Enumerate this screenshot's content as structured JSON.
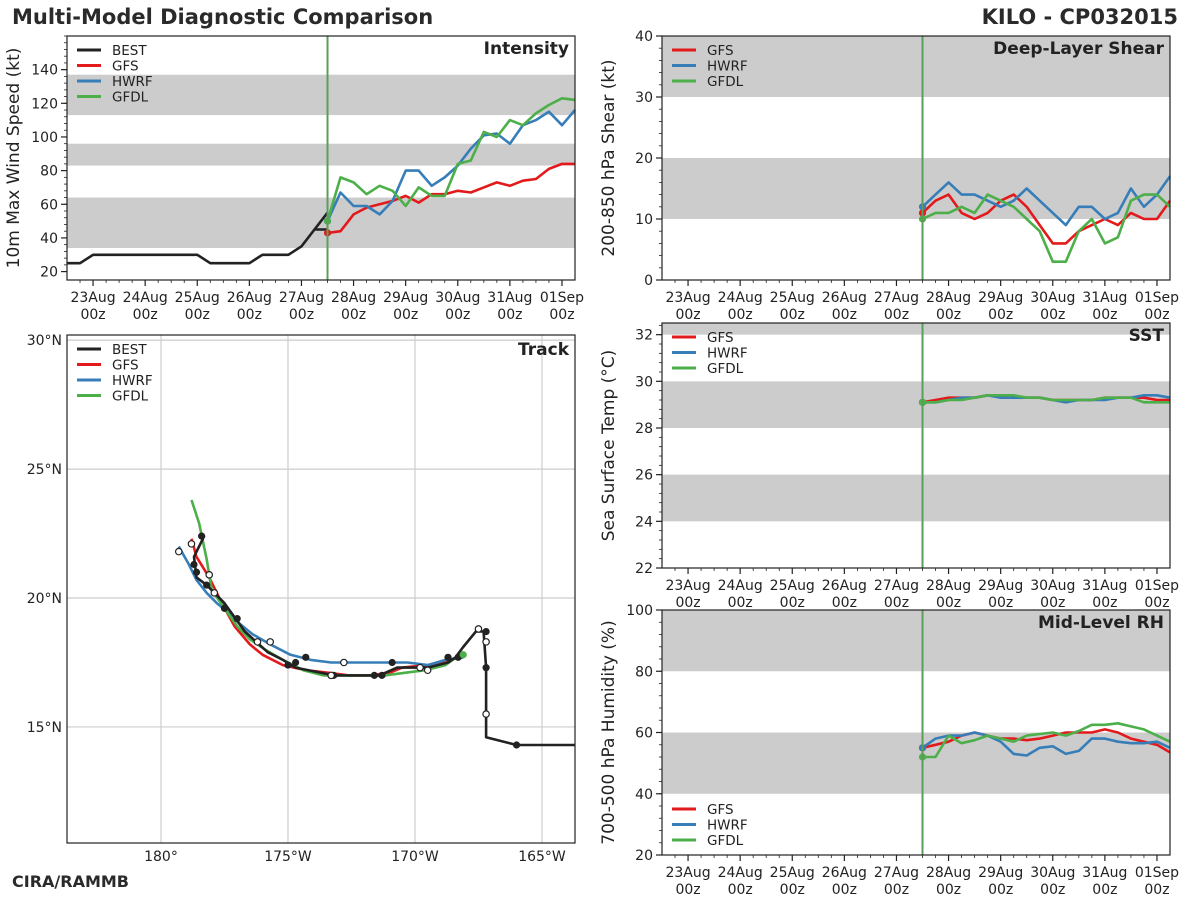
{
  "header": {
    "title": "Multi-Model Diagnostic Comparison",
    "storm": "KILO - CP032015"
  },
  "footer": {
    "credit": "CIRA/RAMMB"
  },
  "colors": {
    "BEST": "#222222",
    "GFS": "#e31a1c",
    "HWRF": "#377eb8",
    "GFDL": "#4daf4a",
    "band": "#cccccc",
    "init": "#5a9e5a"
  },
  "time_axis": {
    "labels": [
      "23Aug\n00z",
      "24Aug\n00z",
      "25Aug\n00z",
      "26Aug\n00z",
      "27Aug\n00z",
      "28Aug\n00z",
      "29Aug\n00z",
      "30Aug\n00z",
      "31Aug\n00z",
      "01Sep\n00z"
    ],
    "unit": "hours from 23Aug 00z",
    "range": [
      -12,
      222
    ],
    "init_time": 108
  },
  "chart_data": [
    {
      "id": "intensity",
      "type": "line",
      "title": "Intensity",
      "ylabel": "10m Max Wind Speed (kt)",
      "ylim": [
        15,
        160
      ],
      "yticks": [
        20,
        40,
        60,
        80,
        100,
        120,
        140
      ],
      "bands": [
        [
          34,
          64
        ],
        [
          83,
          96
        ],
        [
          113,
          137
        ]
      ],
      "legend": [
        "BEST",
        "GFS",
        "HWRF",
        "GFDL"
      ],
      "series": [
        {
          "name": "BEST",
          "x": [
            -12,
            -6,
            0,
            6,
            12,
            18,
            24,
            30,
            36,
            42,
            48,
            54,
            60,
            66,
            72,
            78,
            84,
            90,
            96,
            102,
            108
          ],
          "values": [
            25,
            25,
            30,
            30,
            30,
            30,
            30,
            30,
            30,
            30,
            30,
            25,
            25,
            25,
            25,
            30,
            30,
            30,
            35,
            45,
            45
          ]
        },
        {
          "name": "BEST",
          "x": [
            102,
            108
          ],
          "values": [
            45,
            55
          ]
        },
        {
          "name": "GFS",
          "x": [
            108,
            114,
            120,
            126,
            132,
            138,
            144,
            150,
            156,
            162,
            168,
            174,
            180,
            186,
            192,
            198,
            204,
            210,
            216,
            222
          ],
          "values": [
            43,
            44,
            54,
            58,
            60,
            62,
            65,
            61,
            66,
            66,
            68,
            67,
            70,
            73,
            71,
            74,
            75,
            81,
            84,
            84
          ]
        },
        {
          "name": "HWRF",
          "x": [
            108,
            114,
            120,
            126,
            132,
            138,
            144,
            150,
            156,
            162,
            168,
            174,
            180,
            186,
            192,
            198,
            204,
            210,
            216,
            222
          ],
          "values": [
            50,
            67,
            59,
            59,
            54,
            62,
            80,
            80,
            71,
            76,
            83,
            93,
            101,
            102,
            96,
            107,
            110,
            115,
            107,
            116
          ]
        },
        {
          "name": "GFDL",
          "x": [
            108,
            114,
            120,
            126,
            132,
            138,
            144,
            150,
            156,
            162,
            168,
            174,
            180,
            186,
            192,
            198,
            204,
            210,
            216,
            222
          ],
          "values": [
            50,
            76,
            73,
            66,
            71,
            68,
            59,
            70,
            65,
            65,
            84,
            86,
            103,
            100,
            110,
            107,
            114,
            119,
            123,
            122
          ]
        }
      ]
    },
    {
      "id": "shear",
      "type": "line",
      "title": "Deep-Layer Shear",
      "ylabel": "200-850 hPa Shear (kt)",
      "ylim": [
        0,
        40
      ],
      "yticks": [
        0,
        10,
        20,
        30,
        40
      ],
      "bands": [
        [
          10,
          20
        ],
        [
          30,
          40
        ]
      ],
      "legend": [
        "GFS",
        "HWRF",
        "GFDL"
      ],
      "series": [
        {
          "name": "GFS",
          "x": [
            108,
            114,
            120,
            126,
            132,
            138,
            144,
            150,
            156,
            162,
            168,
            174,
            180,
            186,
            192,
            198,
            204,
            210,
            216,
            222
          ],
          "values": [
            11,
            13,
            14,
            11,
            10,
            11,
            13,
            14,
            12,
            9,
            6,
            6,
            8,
            9,
            10,
            9,
            11,
            10,
            10,
            13
          ]
        },
        {
          "name": "HWRF",
          "x": [
            108,
            114,
            120,
            126,
            132,
            138,
            144,
            150,
            156,
            162,
            168,
            174,
            180,
            186,
            192,
            198,
            204,
            210,
            216,
            222
          ],
          "values": [
            12,
            14,
            16,
            14,
            14,
            13,
            12,
            13,
            15,
            13,
            11,
            9,
            12,
            12,
            10,
            11,
            15,
            12,
            14,
            17
          ]
        },
        {
          "name": "GFDL",
          "x": [
            108,
            114,
            120,
            126,
            132,
            138,
            144,
            150,
            156,
            162,
            168,
            174,
            180,
            186,
            192,
            198,
            204,
            210,
            216,
            222
          ],
          "values": [
            10,
            11,
            11,
            12,
            11,
            14,
            13,
            12,
            10,
            8,
            3,
            3,
            8,
            10,
            6,
            7,
            13,
            14,
            14,
            12
          ]
        }
      ]
    },
    {
      "id": "sst",
      "type": "line",
      "title": "SST",
      "ylabel": "Sea Surface Temp (°C)",
      "ylim": [
        22,
        32.5
      ],
      "yticks": [
        22,
        24,
        26,
        28,
        30,
        32
      ],
      "bands": [
        [
          24,
          26
        ],
        [
          28,
          30
        ],
        [
          32,
          32.5
        ]
      ],
      "legend": [
        "GFS",
        "HWRF",
        "GFDL"
      ],
      "series": [
        {
          "name": "GFS",
          "x": [
            108,
            114,
            120,
            126,
            132,
            138,
            144,
            150,
            156,
            162,
            168,
            174,
            180,
            186,
            192,
            198,
            204,
            210,
            216,
            222
          ],
          "values": [
            29.1,
            29.2,
            29.3,
            29.3,
            29.3,
            29.4,
            29.4,
            29.3,
            29.3,
            29.3,
            29.2,
            29.2,
            29.2,
            29.2,
            29.3,
            29.3,
            29.3,
            29.3,
            29.2,
            29.2
          ]
        },
        {
          "name": "HWRF",
          "x": [
            108,
            114,
            120,
            126,
            132,
            138,
            144,
            150,
            156,
            162,
            168,
            174,
            180,
            186,
            192,
            198,
            204,
            210,
            216,
            222
          ],
          "values": [
            29.1,
            29.1,
            29.2,
            29.3,
            29.3,
            29.4,
            29.3,
            29.3,
            29.3,
            29.3,
            29.2,
            29.1,
            29.2,
            29.2,
            29.2,
            29.3,
            29.3,
            29.4,
            29.4,
            29.3
          ]
        },
        {
          "name": "GFDL",
          "x": [
            108,
            114,
            120,
            126,
            132,
            138,
            144,
            150,
            156,
            162,
            168,
            174,
            180,
            186,
            192,
            198,
            204,
            210,
            216,
            222
          ],
          "values": [
            29.1,
            29.1,
            29.2,
            29.2,
            29.3,
            29.4,
            29.4,
            29.4,
            29.3,
            29.3,
            29.2,
            29.2,
            29.2,
            29.2,
            29.3,
            29.3,
            29.3,
            29.1,
            29.1,
            29.1
          ]
        }
      ]
    },
    {
      "id": "rh",
      "type": "line",
      "title": "Mid-Level RH",
      "ylabel": "700-500 hPa Humidity (%)",
      "ylim": [
        20,
        100
      ],
      "yticks": [
        20,
        40,
        60,
        80,
        100
      ],
      "bands": [
        [
          40,
          60
        ],
        [
          80,
          100
        ]
      ],
      "legend": [
        "GFS",
        "HWRF",
        "GFDL"
      ],
      "series": [
        {
          "name": "GFS",
          "x": [
            108,
            114,
            120,
            126,
            132,
            138,
            144,
            150,
            156,
            162,
            168,
            174,
            180,
            186,
            192,
            198,
            204,
            210,
            216,
            222
          ],
          "values": [
            55,
            56,
            57,
            59,
            60,
            59,
            58,
            58,
            57.5,
            58,
            59,
            60,
            60,
            60,
            61,
            60,
            58,
            57,
            56,
            53.5
          ]
        },
        {
          "name": "HWRF",
          "x": [
            108,
            114,
            120,
            126,
            132,
            138,
            144,
            150,
            156,
            162,
            168,
            174,
            180,
            186,
            192,
            198,
            204,
            210,
            216,
            222
          ],
          "values": [
            55,
            58,
            59,
            59,
            60,
            59,
            57,
            53,
            52.5,
            55,
            55.5,
            53,
            54,
            58,
            58,
            57,
            56.5,
            56.5,
            57,
            55
          ]
        },
        {
          "name": "GFDL",
          "x": [
            108,
            114,
            120,
            126,
            132,
            138,
            144,
            150,
            156,
            162,
            168,
            174,
            180,
            186,
            192,
            198,
            204,
            210,
            216,
            222
          ],
          "values": [
            52,
            52,
            59,
            56.5,
            57.5,
            59,
            58,
            57,
            59,
            59.5,
            60,
            59,
            60.5,
            62.5,
            62.5,
            63,
            62,
            61,
            59,
            57
          ]
        }
      ]
    },
    {
      "id": "track",
      "type": "scatter",
      "title": "Track",
      "xlabel": "",
      "ylabel": "",
      "xlim": [
        -183.7,
        -163.7
      ],
      "ylim": [
        10.5,
        30.2
      ],
      "xticks": [
        [
          -180,
          "180°"
        ],
        [
          -175,
          "175°W"
        ],
        [
          -170,
          "170°W"
        ],
        [
          -165,
          "165°W"
        ]
      ],
      "yticks": [
        [
          15,
          "15°N"
        ],
        [
          20,
          "20°N"
        ],
        [
          25,
          "25°N"
        ],
        [
          30,
          "30°N"
        ]
      ],
      "legend": [
        "BEST",
        "GFS",
        "HWRF",
        "GFDL"
      ],
      "series": [
        {
          "name": "BEST",
          "lon": [
            -163.7,
            -166.0,
            -167.2,
            -167.2,
            -167.2,
            -167.3,
            -167.6,
            -168.1,
            -168.4,
            -168.7,
            -169.5,
            -170.7,
            -171.4,
            -172.0,
            -173.2,
            -174.7,
            -175.2,
            -175.8,
            -176.7,
            -177.5,
            -178.2,
            -178.6,
            -178.7,
            -178.3
          ],
          "lat": [
            14.3,
            14.3,
            14.6,
            15.5,
            17.3,
            18.7,
            18.7,
            18.1,
            17.7,
            17.5,
            17.3,
            17.3,
            17.0,
            17.0,
            17.0,
            17.3,
            17.6,
            17.9,
            18.7,
            19.8,
            20.5,
            20.8,
            21.6,
            22.4
          ]
        },
        {
          "name": "GFS",
          "lon": [
            -168.1,
            -168.7,
            -169.5,
            -170.5,
            -171.0,
            -171.8,
            -172.6,
            -173.4,
            -174.3,
            -175.2,
            -176.0,
            -176.5,
            -177.1,
            -177.6,
            -178.1,
            -178.6,
            -178.8
          ],
          "lat": [
            17.7,
            17.6,
            17.4,
            17.3,
            17.1,
            17.0,
            17.0,
            17.1,
            17.2,
            17.4,
            17.8,
            18.2,
            18.9,
            19.8,
            20.8,
            21.6,
            22.3
          ]
        },
        {
          "name": "HWRF",
          "lon": [
            -168.1,
            -168.8,
            -169.5,
            -170.3,
            -171.0,
            -171.8,
            -172.5,
            -173.3,
            -174.1,
            -174.9,
            -175.7,
            -176.4,
            -176.9,
            -177.3,
            -177.8,
            -178.2,
            -178.6,
            -178.9,
            -179.3
          ],
          "lat": [
            17.7,
            17.6,
            17.4,
            17.5,
            17.5,
            17.5,
            17.5,
            17.5,
            17.6,
            17.8,
            18.2,
            18.6,
            19.0,
            19.4,
            19.8,
            20.2,
            20.7,
            21.3,
            22.0
          ]
        },
        {
          "name": "GFDL",
          "lon": [
            -168.1,
            -168.8,
            -169.6,
            -170.4,
            -171.2,
            -172.0,
            -172.8,
            -173.6,
            -174.4,
            -175.2,
            -175.9,
            -176.5,
            -177.0,
            -177.5,
            -178.0,
            -178.2,
            -178.5,
            -178.8
          ],
          "lat": [
            17.9,
            17.4,
            17.2,
            17.1,
            17.0,
            17.0,
            17.0,
            17.0,
            17.2,
            17.6,
            18.0,
            18.4,
            18.9,
            19.6,
            20.3,
            21.5,
            22.9,
            23.8
          ]
        }
      ],
      "markers_filled": {
        "lon": [
          -166.0,
          -167.2,
          -167.2,
          -168.3,
          -168.7,
          -170.9,
          -171.3,
          -171.6,
          -173.2,
          -174.3,
          -174.7,
          -175.0,
          -177.0,
          -177.5,
          -178.2,
          -178.6,
          -178.7,
          -178.4
        ],
        "lat": [
          14.3,
          17.3,
          18.7,
          17.7,
          17.7,
          17.5,
          17.0,
          17.0,
          17.0,
          17.7,
          17.5,
          17.4,
          19.2,
          19.6,
          20.5,
          21.0,
          21.3,
          22.4
        ]
      },
      "markers_open": {
        "lon": [
          -167.2,
          -167.2,
          -167.5,
          -169.5,
          -169.8,
          -172.8,
          -173.3,
          -175.7,
          -176.2,
          -177.9,
          -178.1,
          -178.8,
          -179.3
        ],
        "lat": [
          15.5,
          18.3,
          18.8,
          17.2,
          17.3,
          17.5,
          17.0,
          18.3,
          18.3,
          20.2,
          20.9,
          22.1,
          21.8
        ]
      }
    }
  ]
}
